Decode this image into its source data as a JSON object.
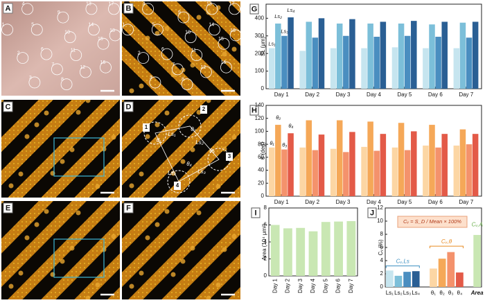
{
  "panels": [
    {
      "label": "A",
      "markers": [
        "1",
        "2",
        "3",
        "4",
        "5",
        "6",
        "7",
        "8",
        "9",
        "10",
        "11",
        "12",
        "13",
        "14",
        "15",
        "16",
        "17",
        "18"
      ]
    },
    {
      "label": "B",
      "markers": [
        "1",
        "2",
        "3",
        "4",
        "5",
        "6",
        "7",
        "8",
        "9",
        "10",
        "11",
        "12",
        "13",
        "14",
        "15",
        "16",
        "17",
        "18"
      ]
    },
    {
      "label": "C"
    },
    {
      "label": "D",
      "annotations": [
        "1",
        "2",
        "3",
        "4",
        "Ls₁",
        "Ls₂",
        "Ls₃",
        "Ls₄",
        "θ₁",
        "θ₂",
        "θ₃",
        "θ₄"
      ]
    },
    {
      "label": "E"
    },
    {
      "label": "F"
    }
  ],
  "chart_data": [
    {
      "type": "bar",
      "panel": "G",
      "y_label": "SL (μm)",
      "categories": [
        "Day 1",
        "Day 2",
        "Day 3",
        "Day 4",
        "Day 5",
        "Day 6",
        "Day 7"
      ],
      "series": [
        {
          "name": "Ls₁",
          "color": "#c6e5ef",
          "values": [
            230,
            215,
            230,
            230,
            235,
            230,
            230
          ]
        },
        {
          "name": "Ls₂",
          "color": "#7cbfd9",
          "values": [
            370,
            380,
            370,
            370,
            370,
            365,
            375
          ]
        },
        {
          "name": "Ls₃",
          "color": "#4a8ec0",
          "values": [
            300,
            290,
            300,
            295,
            300,
            295,
            290
          ]
        },
        {
          "name": "Ls₄",
          "color": "#2a5f94",
          "values": [
            405,
            400,
            395,
            380,
            385,
            380,
            380
          ]
        }
      ],
      "ylim": [
        0,
        480
      ],
      "yticks": [
        0,
        100,
        200,
        300,
        400
      ]
    },
    {
      "type": "bar",
      "panel": "H",
      "y_label": "θ (deg)",
      "categories": [
        "Day 1",
        "Day 2",
        "Day 3",
        "Day 4",
        "Day 5",
        "Day 6",
        "Day 7"
      ],
      "series": [
        {
          "name": "θ₁",
          "color": "#fcd6a4",
          "values": [
            75,
            75,
            73,
            76,
            75,
            78,
            78
          ]
        },
        {
          "name": "θ₂",
          "color": "#f5a858",
          "values": [
            110,
            117,
            117,
            115,
            113,
            110,
            103
          ]
        },
        {
          "name": "θ₃",
          "color": "#f4926c",
          "values": [
            72,
            71,
            68,
            70,
            71,
            75,
            80
          ]
        },
        {
          "name": "θ₄",
          "color": "#e35a48",
          "values": [
            97,
            95,
            99,
            96,
            100,
            96,
            96
          ]
        }
      ],
      "ylim": [
        0,
        140
      ],
      "yticks": [
        0,
        20,
        40,
        60,
        80,
        100,
        120,
        140
      ]
    },
    {
      "type": "bar",
      "panel": "I",
      "y_label": "Area (10⁴ μm²)",
      "categories": [
        "Day 1",
        "Day 2",
        "Day 3",
        "Day 4",
        "Day 5",
        "Day 6",
        "Day 7"
      ],
      "values": [
        6.0,
        5.6,
        5.65,
        5.25,
        6.35,
        6.4,
        6.45
      ],
      "color": "#c9e7b3",
      "ylim": [
        0,
        8
      ],
      "yticks": [
        0,
        2,
        4,
        6,
        8
      ]
    },
    {
      "type": "bar",
      "panel": "J",
      "y_label": "Cᵥ (%)",
      "categories": [
        "Ls₁",
        "Ls₂",
        "Ls₃",
        "Ls₄",
        "θ₁",
        "θ₂",
        "θ₃",
        "θ₄",
        "Area"
      ],
      "values": [
        2.5,
        1.7,
        2.3,
        2.4,
        2.8,
        4.3,
        5.3,
        2.2,
        7.9
      ],
      "colors": [
        "#c6e5ef",
        "#7cbfd9",
        "#4a8ec0",
        "#2a5f94",
        "#fcd6a4",
        "#f5a858",
        "#f4926c",
        "#e35a48",
        "#c9e7b3"
      ],
      "formula": "Cᵥ = S_D / Mean × 100%",
      "group_labels": [
        "Cᵥ,Ls",
        "Cᵥ,θ",
        "Cᵥ,A"
      ],
      "ylim": [
        0,
        12
      ],
      "yticks": [
        0,
        2,
        4,
        6,
        8,
        10,
        12
      ]
    }
  ]
}
